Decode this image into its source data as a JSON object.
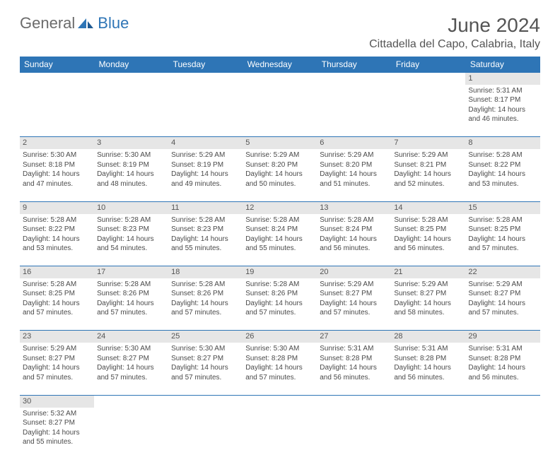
{
  "logo": {
    "text_gray": "General",
    "text_blue": "Blue"
  },
  "header": {
    "month_title": "June 2024",
    "location": "Cittadella del Capo, Calabria, Italy"
  },
  "colors": {
    "header_bg": "#2e75b6",
    "header_text": "#ffffff",
    "daynum_bg": "#e6e6e6",
    "border": "#2e75b6",
    "logo_gray": "#6b6b6b",
    "logo_blue": "#2e75b6"
  },
  "weekdays": [
    "Sunday",
    "Monday",
    "Tuesday",
    "Wednesday",
    "Thursday",
    "Friday",
    "Saturday"
  ],
  "weeks": [
    [
      null,
      null,
      null,
      null,
      null,
      null,
      {
        "d": "1",
        "sr": "5:31 AM",
        "ss": "8:17 PM",
        "dl": "14 hours and 46 minutes."
      }
    ],
    [
      {
        "d": "2",
        "sr": "5:30 AM",
        "ss": "8:18 PM",
        "dl": "14 hours and 47 minutes."
      },
      {
        "d": "3",
        "sr": "5:30 AM",
        "ss": "8:19 PM",
        "dl": "14 hours and 48 minutes."
      },
      {
        "d": "4",
        "sr": "5:29 AM",
        "ss": "8:19 PM",
        "dl": "14 hours and 49 minutes."
      },
      {
        "d": "5",
        "sr": "5:29 AM",
        "ss": "8:20 PM",
        "dl": "14 hours and 50 minutes."
      },
      {
        "d": "6",
        "sr": "5:29 AM",
        "ss": "8:20 PM",
        "dl": "14 hours and 51 minutes."
      },
      {
        "d": "7",
        "sr": "5:29 AM",
        "ss": "8:21 PM",
        "dl": "14 hours and 52 minutes."
      },
      {
        "d": "8",
        "sr": "5:28 AM",
        "ss": "8:22 PM",
        "dl": "14 hours and 53 minutes."
      }
    ],
    [
      {
        "d": "9",
        "sr": "5:28 AM",
        "ss": "8:22 PM",
        "dl": "14 hours and 53 minutes."
      },
      {
        "d": "10",
        "sr": "5:28 AM",
        "ss": "8:23 PM",
        "dl": "14 hours and 54 minutes."
      },
      {
        "d": "11",
        "sr": "5:28 AM",
        "ss": "8:23 PM",
        "dl": "14 hours and 55 minutes."
      },
      {
        "d": "12",
        "sr": "5:28 AM",
        "ss": "8:24 PM",
        "dl": "14 hours and 55 minutes."
      },
      {
        "d": "13",
        "sr": "5:28 AM",
        "ss": "8:24 PM",
        "dl": "14 hours and 56 minutes."
      },
      {
        "d": "14",
        "sr": "5:28 AM",
        "ss": "8:25 PM",
        "dl": "14 hours and 56 minutes."
      },
      {
        "d": "15",
        "sr": "5:28 AM",
        "ss": "8:25 PM",
        "dl": "14 hours and 57 minutes."
      }
    ],
    [
      {
        "d": "16",
        "sr": "5:28 AM",
        "ss": "8:25 PM",
        "dl": "14 hours and 57 minutes."
      },
      {
        "d": "17",
        "sr": "5:28 AM",
        "ss": "8:26 PM",
        "dl": "14 hours and 57 minutes."
      },
      {
        "d": "18",
        "sr": "5:28 AM",
        "ss": "8:26 PM",
        "dl": "14 hours and 57 minutes."
      },
      {
        "d": "19",
        "sr": "5:28 AM",
        "ss": "8:26 PM",
        "dl": "14 hours and 57 minutes."
      },
      {
        "d": "20",
        "sr": "5:29 AM",
        "ss": "8:27 PM",
        "dl": "14 hours and 57 minutes."
      },
      {
        "d": "21",
        "sr": "5:29 AM",
        "ss": "8:27 PM",
        "dl": "14 hours and 58 minutes."
      },
      {
        "d": "22",
        "sr": "5:29 AM",
        "ss": "8:27 PM",
        "dl": "14 hours and 57 minutes."
      }
    ],
    [
      {
        "d": "23",
        "sr": "5:29 AM",
        "ss": "8:27 PM",
        "dl": "14 hours and 57 minutes."
      },
      {
        "d": "24",
        "sr": "5:30 AM",
        "ss": "8:27 PM",
        "dl": "14 hours and 57 minutes."
      },
      {
        "d": "25",
        "sr": "5:30 AM",
        "ss": "8:27 PM",
        "dl": "14 hours and 57 minutes."
      },
      {
        "d": "26",
        "sr": "5:30 AM",
        "ss": "8:28 PM",
        "dl": "14 hours and 57 minutes."
      },
      {
        "d": "27",
        "sr": "5:31 AM",
        "ss": "8:28 PM",
        "dl": "14 hours and 56 minutes."
      },
      {
        "d": "28",
        "sr": "5:31 AM",
        "ss": "8:28 PM",
        "dl": "14 hours and 56 minutes."
      },
      {
        "d": "29",
        "sr": "5:31 AM",
        "ss": "8:28 PM",
        "dl": "14 hours and 56 minutes."
      }
    ],
    [
      {
        "d": "30",
        "sr": "5:32 AM",
        "ss": "8:27 PM",
        "dl": "14 hours and 55 minutes."
      },
      null,
      null,
      null,
      null,
      null,
      null
    ]
  ],
  "labels": {
    "sunrise": "Sunrise:",
    "sunset": "Sunset:",
    "daylight": "Daylight:"
  }
}
